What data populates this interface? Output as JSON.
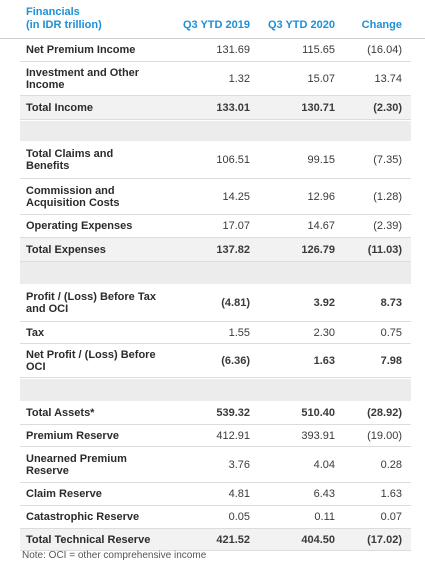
{
  "header": {
    "title_line1": "Financials",
    "title_line2": "(in IDR trillion)",
    "col1": "Q3 YTD 2019",
    "col2": "Q3 YTD 2020",
    "col3": "Change"
  },
  "rows": [
    {
      "label": "Net Premium Income",
      "v1": "131.69",
      "v2": "115.65",
      "v3": "(16.04)"
    },
    {
      "label": "Investment and Other Income",
      "v1": "1.32",
      "v2": "15.07",
      "v3": "13.74"
    },
    {
      "label": "Total Income",
      "v1": "133.01",
      "v2": "130.71",
      "v3": "(2.30)"
    },
    {
      "label": "Total Claims and Benefits",
      "v1": "106.51",
      "v2": "99.15",
      "v3": "(7.35)"
    },
    {
      "label": "Commission and Acquisition Costs",
      "v1": "14.25",
      "v2": "12.96",
      "v3": "(1.28)"
    },
    {
      "label": "Operating Expenses",
      "v1": "17.07",
      "v2": "14.67",
      "v3": "(2.39)"
    },
    {
      "label": "Total Expenses",
      "v1": "137.82",
      "v2": "126.79",
      "v3": "(11.03)"
    },
    {
      "label": "Profit / (Loss) Before Tax and OCI",
      "v1": "(4.81)",
      "v2": "3.92",
      "v3": "8.73"
    },
    {
      "label": "Tax",
      "v1": "1.55",
      "v2": "2.30",
      "v3": "0.75"
    },
    {
      "label": "Net Profit / (Loss) Before OCI",
      "v1": "(6.36)",
      "v2": "1.63",
      "v3": "7.98"
    },
    {
      "label": "Total Assets*",
      "v1": "539.32",
      "v2": "510.40",
      "v3": "(28.92)"
    },
    {
      "label": "Premium Reserve",
      "v1": "412.91",
      "v2": "393.91",
      "v3": "(19.00)"
    },
    {
      "label": "Unearned Premium Reserve",
      "v1": "3.76",
      "v2": "4.04",
      "v3": "0.28"
    },
    {
      "label": "Claim Reserve",
      "v1": "4.81",
      "v2": "6.43",
      "v3": "1.63"
    },
    {
      "label": "Catastrophic Reserve",
      "v1": "0.05",
      "v2": "0.11",
      "v3": "0.07"
    },
    {
      "label": "Total Technical Reserve",
      "v1": "421.52",
      "v2": "404.50",
      "v3": "(17.02)"
    }
  ],
  "note": "Note: OCI = other comprehensive income"
}
